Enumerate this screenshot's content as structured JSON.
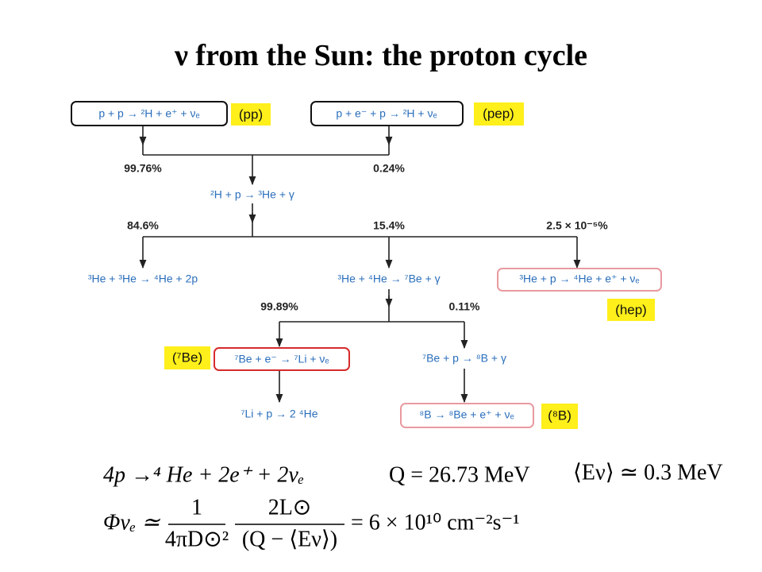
{
  "title": "ν from the Sun: the proton cycle",
  "nodes": [
    {
      "label": "p + p → ²H + e⁺ + νₑ",
      "tag": "(pp)"
    },
    {
      "label": "p + e⁻ + p → ²H + νₑ",
      "tag": "(pep)"
    },
    {
      "label": "²H + p → ³He + γ"
    },
    {
      "label": "³He + ³He → ⁴He + 2p"
    },
    {
      "label": "³He + ⁴He → ⁷Be + γ"
    },
    {
      "label": "³He + p → ⁴He + e⁺ + νₑ",
      "tag": "(hep)"
    },
    {
      "label": "⁷Be + e⁻ → ⁷Li + νₑ",
      "tag": "(⁷Be)"
    },
    {
      "label": "⁷Be + p → ⁸B + γ"
    },
    {
      "label": "⁷Li + p → 2 ⁴He"
    },
    {
      "label": "⁸B → ⁸Be + e⁺ + νₑ",
      "tag": "(⁸B)"
    }
  ],
  "branches": [
    "99.76%",
    "0.24%",
    "84.6%",
    "15.4%",
    "2.5 × 10⁻⁵%",
    "99.89%",
    "0.11%"
  ],
  "equations": {
    "reaction": "4p →⁴ He + 2e⁺ + 2νₑ",
    "q_value": "Q = 26.73 MeV",
    "mean_energy": "⟨Eν⟩ ≃ 0.3 MeV",
    "flux_lhs": "Φνₑ ≃",
    "flux_num1": "1",
    "flux_den1": "4πD⊙²",
    "flux_num2": "2L⊙",
    "flux_den2": "(Q − ⟨Eν⟩)",
    "flux_rhs": "= 6 × 10¹⁰ cm⁻²s⁻¹"
  }
}
